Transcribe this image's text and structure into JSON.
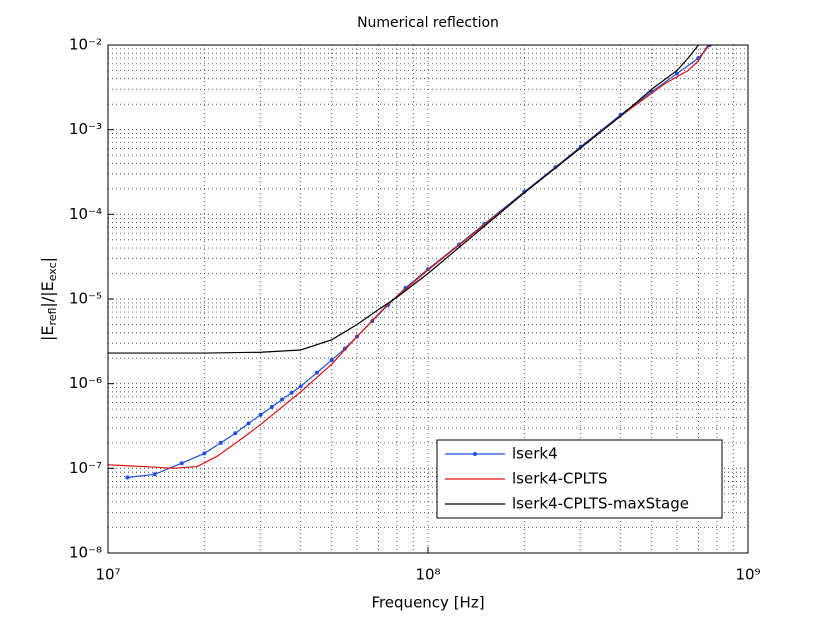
{
  "chart_data": {
    "type": "line",
    "title": "Numerical reflection",
    "xlabel": "Frequency [Hz]",
    "ylabel": [
      "|E",
      "refl",
      "|/|E",
      "exc",
      "|"
    ],
    "xscale": "log",
    "yscale": "log",
    "xlim": [
      10000000.0,
      1000000000.0
    ],
    "ylim": [
      1e-08,
      0.01
    ],
    "xticks": [
      {
        "value": 10000000.0,
        "label": "10⁷"
      },
      {
        "value": 100000000.0,
        "label": "10⁸"
      },
      {
        "value": 1000000000.0,
        "label": "10⁹"
      }
    ],
    "yticks": [
      {
        "value": 1e-08,
        "label": "10⁻⁸"
      },
      {
        "value": 1e-07,
        "label": "10⁻⁷"
      },
      {
        "value": 1e-06,
        "label": "10⁻⁶"
      },
      {
        "value": 1e-05,
        "label": "10⁻⁵"
      },
      {
        "value": 0.0001,
        "label": "10⁻⁴"
      },
      {
        "value": 0.001,
        "label": "10⁻³"
      },
      {
        "value": 0.01,
        "label": "10⁻²"
      }
    ],
    "xminorticks": [
      20000000.0,
      30000000.0,
      40000000.0,
      50000000.0,
      60000000.0,
      70000000.0,
      80000000.0,
      90000000.0,
      200000000.0,
      300000000.0,
      400000000.0,
      500000000.0,
      600000000.0,
      700000000.0,
      800000000.0,
      900000000.0
    ],
    "yminorticks": [
      2e-08,
      3e-08,
      4e-08,
      5e-08,
      6e-08,
      7e-08,
      8e-08,
      9e-08,
      2e-07,
      3e-07,
      4e-07,
      5e-07,
      6e-07,
      7e-07,
      8e-07,
      9e-07,
      2e-06,
      3e-06,
      4e-06,
      5e-06,
      6e-06,
      7e-06,
      8e-06,
      9e-06,
      2e-05,
      3e-05,
      4e-05,
      5e-05,
      6e-05,
      7e-05,
      8e-05,
      9e-05,
      0.0002,
      0.0003,
      0.0004,
      0.0005,
      0.0006,
      0.0007,
      0.0008,
      0.0009,
      0.002,
      0.003,
      0.004,
      0.005,
      0.006,
      0.007,
      0.008,
      0.009
    ],
    "grid": true,
    "minor_grid": true,
    "legend": "lower right",
    "series": [
      {
        "name": "lserk4",
        "color": "#2050e0",
        "marker": true,
        "x": [
          11500000.0,
          14000000.0,
          17000000.0,
          20000000.0,
          22500000.0,
          25000000.0,
          27500000.0,
          30000000.0,
          32500000.0,
          35000000.0,
          37500000.0,
          40000000.0,
          45000000.0,
          50000000.0,
          55000000.0,
          60000000.0,
          67000000.0,
          75000000.0,
          85000000.0,
          100000000.0,
          125000000.0,
          150000000.0,
          200000000.0,
          250000000.0,
          300000000.0,
          400000000.0,
          500000000.0,
          600000000.0,
          700000000.0,
          760000000.0
        ],
        "values": [
          7.8e-08,
          8.5e-08,
          1.15e-07,
          1.5e-07,
          2e-07,
          2.6e-07,
          3.4e-07,
          4.3e-07,
          5.3e-07,
          6.5e-07,
          7.8e-07,
          9.3e-07,
          1.35e-06,
          1.9e-06,
          2.6e-06,
          3.6e-06,
          5.5e-06,
          8.5e-06,
          1.35e-05,
          2.25e-05,
          4.4e-05,
          7.7e-05,
          0.000185,
          0.00036,
          0.00063,
          0.0015,
          0.0028,
          0.0046,
          0.007,
          0.01
        ]
      },
      {
        "name": "lserk4-CPLTS",
        "color": "#e01010",
        "marker": false,
        "x": [
          10000000.0,
          13000000.0,
          16000000.0,
          19000000.0,
          22000000.0,
          26000000.0,
          30000000.0,
          40000000.0,
          50000000.0,
          60000000.0,
          75000000.0,
          100000000.0,
          200000000.0,
          400000000.0,
          550000000.0,
          650000000.0,
          700000000.0,
          750000000.0
        ],
        "values": [
          1.1e-07,
          1.05e-07,
          1e-07,
          1.05e-07,
          1.4e-07,
          2.2e-07,
          3.3e-07,
          8e-07,
          1.7e-06,
          3.6e-06,
          8.7e-06,
          2.2e-05,
          0.00018,
          0.00145,
          0.0035,
          0.005,
          0.0065,
          0.01
        ]
      },
      {
        "name": "lserk4-CPLTS-maxStage",
        "color": "#000000",
        "marker": false,
        "x": [
          10000000.0,
          20000000.0,
          30000000.0,
          40000000.0,
          50000000.0,
          60000000.0,
          70000000.0,
          80000000.0,
          100000000.0,
          200000000.0,
          400000000.0,
          500000000.0,
          600000000.0,
          650000000.0,
          700000000.0
        ],
        "values": [
          2.3e-06,
          2.3e-06,
          2.35e-06,
          2.5e-06,
          3.3e-06,
          5e-06,
          7.5e-06,
          1.05e-05,
          2e-05,
          0.00018,
          0.00145,
          0.003,
          0.005,
          0.007,
          0.01
        ]
      }
    ]
  }
}
